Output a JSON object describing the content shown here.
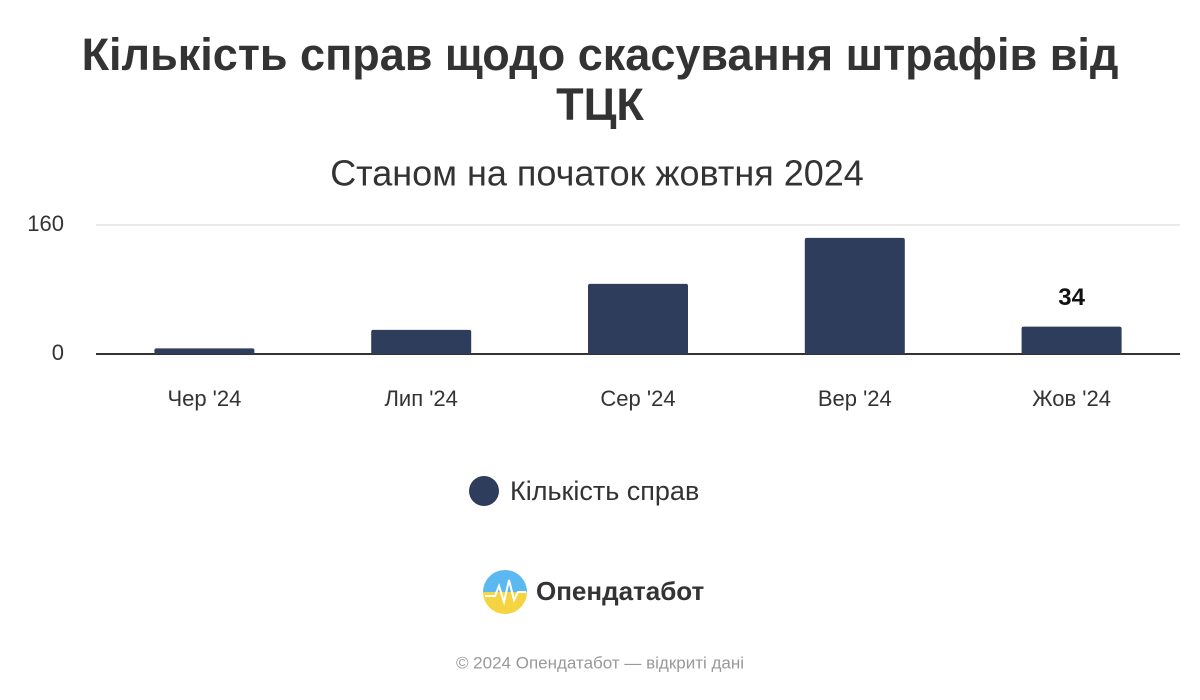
{
  "chart_data": {
    "type": "bar",
    "title": "Кількість справ щодо скасування штрафів від ТЦК",
    "subtitle": "Станом на початок жовтня 2024",
    "categories": [
      "Чер '24",
      "Лип '24",
      "Сер '24",
      "Вер '24",
      "Жов '24"
    ],
    "series": [
      {
        "name": "Кількість справ",
        "color": "#2e3d5c",
        "values": [
          7,
          30,
          87,
          144,
          34
        ],
        "value_labels": [
          null,
          null,
          null,
          null,
          "34"
        ]
      }
    ],
    "ylim": [
      0,
      160
    ],
    "yticks": [
      0,
      160
    ],
    "grid": true,
    "legend": "bottom"
  },
  "footer": {
    "brand": "Опендатабот",
    "copyright": "© 2024 Опендатабот — відкриті дані"
  }
}
